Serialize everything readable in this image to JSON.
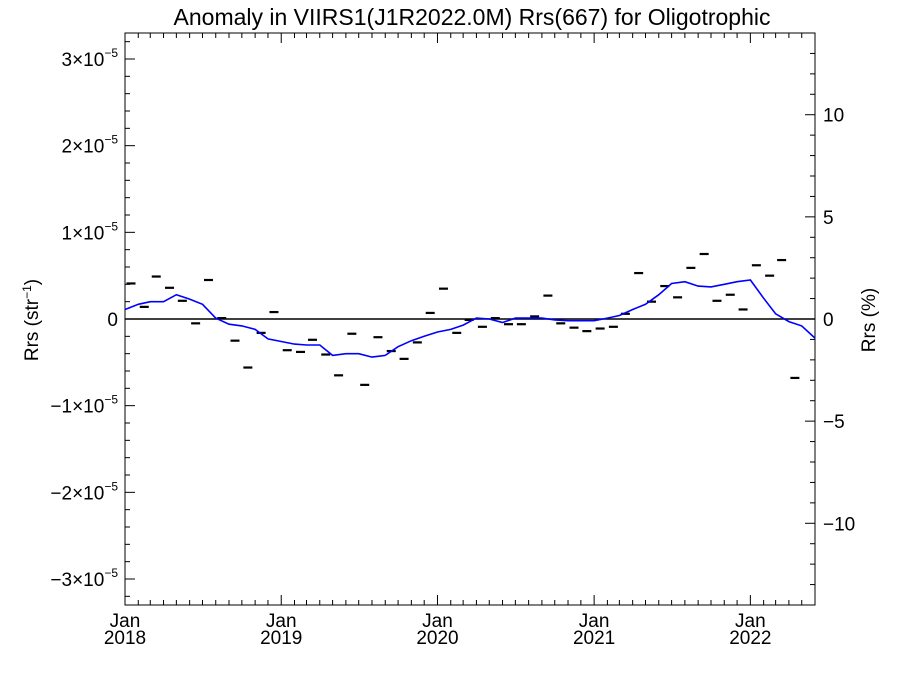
{
  "chart_data": {
    "type": "line",
    "title": "Anomaly in VIIRS1(J1R2022.0M) Rrs(667) for Oligotrophic",
    "ylabel_left": {
      "base": "Rrs (str",
      "sup": "−1",
      "tail": ")"
    },
    "ylabel_right": "Rrs (%)",
    "x_range": [
      "2018-01-01",
      "2022-06-01"
    ],
    "y_left_range": [
      -3.3e-05,
      3.3e-05
    ],
    "y_right_range": [
      -14,
      14
    ],
    "x_ticks": [
      {
        "month": "Jan",
        "year": "2018",
        "date": "2018-01-01"
      },
      {
        "month": "Jan",
        "year": "2019",
        "date": "2019-01-01"
      },
      {
        "month": "Jan",
        "year": "2020",
        "date": "2020-01-01"
      },
      {
        "month": "Jan",
        "year": "2021",
        "date": "2021-01-01"
      },
      {
        "month": "Jan",
        "year": "2022",
        "date": "2022-01-01"
      }
    ],
    "y_left_ticks": [
      {
        "value": 3e-05,
        "mantissa": "3",
        "times": "×10",
        "exponent": "−5"
      },
      {
        "value": 2e-05,
        "mantissa": "2",
        "times": "×10",
        "exponent": "−5"
      },
      {
        "value": 1e-05,
        "mantissa": "1",
        "times": "×10",
        "exponent": "−5"
      },
      {
        "value": 0,
        "mantissa": "0",
        "times": "",
        "exponent": ""
      },
      {
        "value": -1e-05,
        "mantissa": "−1",
        "times": "×10",
        "exponent": "−5"
      },
      {
        "value": -2e-05,
        "mantissa": "−2",
        "times": "×10",
        "exponent": "−5"
      },
      {
        "value": -3e-05,
        "mantissa": "−3",
        "times": "×10",
        "exponent": "−5"
      }
    ],
    "y_right_ticks": [
      {
        "value": 10,
        "label": "10"
      },
      {
        "value": 5,
        "label": "5"
      },
      {
        "value": 0,
        "label": "0"
      },
      {
        "value": -5,
        "label": "−5"
      },
      {
        "value": -10,
        "label": "−10"
      }
    ],
    "reference_line": {
      "y": 0,
      "color": "#000000"
    },
    "series": [
      {
        "style": "points",
        "marker": "dash",
        "color": "#000000",
        "points": [
          {
            "x": "2018-01-15",
            "y": 4.1e-06
          },
          {
            "x": "2018-02-15",
            "y": 1.4e-06
          },
          {
            "x": "2018-03-15",
            "y": 4.9e-06
          },
          {
            "x": "2018-04-15",
            "y": 3.6e-06
          },
          {
            "x": "2018-05-15",
            "y": 2.1e-06
          },
          {
            "x": "2018-06-15",
            "y": -5e-07
          },
          {
            "x": "2018-07-15",
            "y": 4.5e-06
          },
          {
            "x": "2018-08-15",
            "y": 1e-07
          },
          {
            "x": "2018-09-15",
            "y": -2.5e-06
          },
          {
            "x": "2018-10-15",
            "y": -5.6e-06
          },
          {
            "x": "2018-11-15",
            "y": -1.6e-06
          },
          {
            "x": "2018-12-15",
            "y": 8e-07
          },
          {
            "x": "2019-01-15",
            "y": -3.6e-06
          },
          {
            "x": "2019-02-15",
            "y": -3.8e-06
          },
          {
            "x": "2019-03-15",
            "y": -2.4e-06
          },
          {
            "x": "2019-04-15",
            "y": -4.1e-06
          },
          {
            "x": "2019-05-15",
            "y": -6.5e-06
          },
          {
            "x": "2019-06-15",
            "y": -1.7e-06
          },
          {
            "x": "2019-07-15",
            "y": -7.6e-06
          },
          {
            "x": "2019-08-15",
            "y": -2.1e-06
          },
          {
            "x": "2019-09-15",
            "y": -3.7e-06
          },
          {
            "x": "2019-10-15",
            "y": -4.6e-06
          },
          {
            "x": "2019-11-15",
            "y": -2.7e-06
          },
          {
            "x": "2019-12-15",
            "y": 7e-07
          },
          {
            "x": "2020-01-15",
            "y": 3.5e-06
          },
          {
            "x": "2020-02-15",
            "y": -1.6e-06
          },
          {
            "x": "2020-03-15",
            "y": -1e-07
          },
          {
            "x": "2020-04-15",
            "y": -9e-07
          },
          {
            "x": "2020-05-15",
            "y": 1e-07
          },
          {
            "x": "2020-06-15",
            "y": -6e-07
          },
          {
            "x": "2020-07-15",
            "y": -6e-07
          },
          {
            "x": "2020-08-15",
            "y": 3e-07
          },
          {
            "x": "2020-09-15",
            "y": 2.7e-06
          },
          {
            "x": "2020-10-15",
            "y": -5e-07
          },
          {
            "x": "2020-11-15",
            "y": -1e-06
          },
          {
            "x": "2020-12-15",
            "y": -1.4e-06
          },
          {
            "x": "2021-01-15",
            "y": -1.1e-06
          },
          {
            "x": "2021-02-15",
            "y": -9e-07
          },
          {
            "x": "2021-03-15",
            "y": 6e-07
          },
          {
            "x": "2021-04-15",
            "y": 5.3e-06
          },
          {
            "x": "2021-05-15",
            "y": 2e-06
          },
          {
            "x": "2021-06-15",
            "y": 3.8e-06
          },
          {
            "x": "2021-07-15",
            "y": 2.5e-06
          },
          {
            "x": "2021-08-15",
            "y": 5.9e-06
          },
          {
            "x": "2021-09-15",
            "y": 7.5e-06
          },
          {
            "x": "2021-10-15",
            "y": 2.1e-06
          },
          {
            "x": "2021-11-15",
            "y": 2.8e-06
          },
          {
            "x": "2021-12-15",
            "y": 1.1e-06
          },
          {
            "x": "2022-01-15",
            "y": 6.2e-06
          },
          {
            "x": "2022-02-15",
            "y": 5e-06
          },
          {
            "x": "2022-03-15",
            "y": 6.8e-06
          },
          {
            "x": "2022-04-15",
            "y": -6.8e-06
          }
        ]
      },
      {
        "style": "line",
        "color": "#0000ff",
        "points": [
          {
            "x": "2018-01-01",
            "y": 1.1e-06
          },
          {
            "x": "2018-02-01",
            "y": 1.7e-06
          },
          {
            "x": "2018-03-01",
            "y": 2e-06
          },
          {
            "x": "2018-04-01",
            "y": 2e-06
          },
          {
            "x": "2018-05-01",
            "y": 2.8e-06
          },
          {
            "x": "2018-06-01",
            "y": 2.3e-06
          },
          {
            "x": "2018-07-01",
            "y": 1.7e-06
          },
          {
            "x": "2018-08-01",
            "y": 1e-07
          },
          {
            "x": "2018-09-01",
            "y": -6e-07
          },
          {
            "x": "2018-10-01",
            "y": -8e-07
          },
          {
            "x": "2018-11-01",
            "y": -1.2e-06
          },
          {
            "x": "2018-12-01",
            "y": -2.3e-06
          },
          {
            "x": "2019-01-01",
            "y": -2.6e-06
          },
          {
            "x": "2019-02-01",
            "y": -2.9e-06
          },
          {
            "x": "2019-03-01",
            "y": -3e-06
          },
          {
            "x": "2019-04-01",
            "y": -3e-06
          },
          {
            "x": "2019-05-01",
            "y": -4.2e-06
          },
          {
            "x": "2019-06-01",
            "y": -4e-06
          },
          {
            "x": "2019-07-01",
            "y": -4e-06
          },
          {
            "x": "2019-08-01",
            "y": -4.4e-06
          },
          {
            "x": "2019-09-01",
            "y": -4.2e-06
          },
          {
            "x": "2019-10-01",
            "y": -3.2e-06
          },
          {
            "x": "2019-11-01",
            "y": -2.5e-06
          },
          {
            "x": "2019-12-01",
            "y": -2e-06
          },
          {
            "x": "2020-01-01",
            "y": -1.5e-06
          },
          {
            "x": "2020-02-01",
            "y": -1.2e-06
          },
          {
            "x": "2020-03-01",
            "y": -7e-07
          },
          {
            "x": "2020-04-01",
            "y": 1e-07
          },
          {
            "x": "2020-05-01",
            "y": 0
          },
          {
            "x": "2020-06-01",
            "y": -4e-07
          },
          {
            "x": "2020-07-01",
            "y": 1e-07
          },
          {
            "x": "2020-08-01",
            "y": 1e-07
          },
          {
            "x": "2020-09-01",
            "y": 1e-07
          },
          {
            "x": "2020-10-01",
            "y": -1e-07
          },
          {
            "x": "2020-11-01",
            "y": -2e-07
          },
          {
            "x": "2020-12-01",
            "y": -2e-07
          },
          {
            "x": "2021-01-01",
            "y": -2e-07
          },
          {
            "x": "2021-02-01",
            "y": 1e-07
          },
          {
            "x": "2021-03-01",
            "y": 4e-07
          },
          {
            "x": "2021-04-01",
            "y": 1.1e-06
          },
          {
            "x": "2021-05-01",
            "y": 1.7e-06
          },
          {
            "x": "2021-06-01",
            "y": 2.8e-06
          },
          {
            "x": "2021-07-01",
            "y": 4.1e-06
          },
          {
            "x": "2021-08-01",
            "y": 4.3e-06
          },
          {
            "x": "2021-09-01",
            "y": 3.8e-06
          },
          {
            "x": "2021-10-01",
            "y": 3.7e-06
          },
          {
            "x": "2021-11-01",
            "y": 4e-06
          },
          {
            "x": "2021-12-01",
            "y": 4.3e-06
          },
          {
            "x": "2022-01-01",
            "y": 4.5e-06
          },
          {
            "x": "2022-02-01",
            "y": 2.4e-06
          },
          {
            "x": "2022-03-01",
            "y": 6e-07
          },
          {
            "x": "2022-04-01",
            "y": -3e-07
          },
          {
            "x": "2022-05-01",
            "y": -8e-07
          },
          {
            "x": "2022-06-01",
            "y": -2.2e-06
          }
        ]
      }
    ],
    "grid": false,
    "legend": "none"
  }
}
